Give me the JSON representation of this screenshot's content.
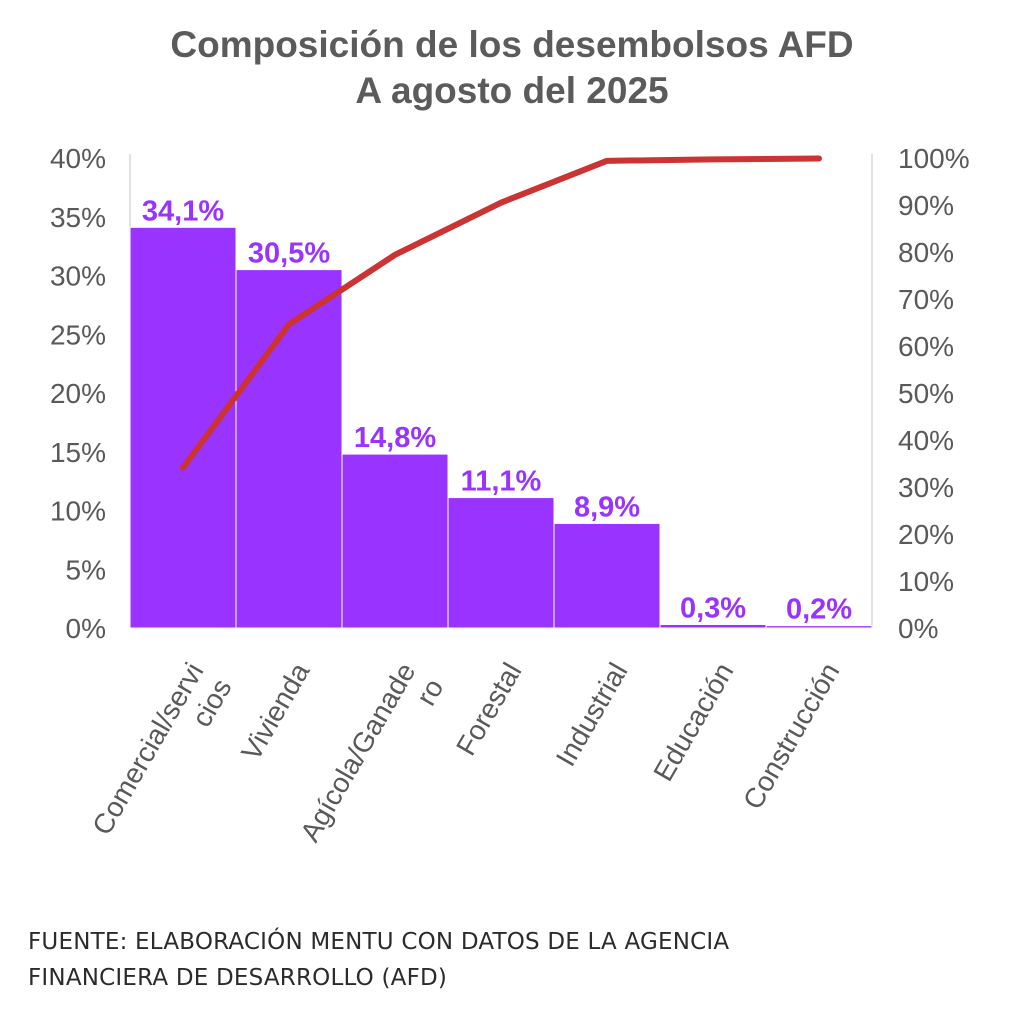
{
  "chart_data": {
    "type": "bar",
    "title": "Composición de los desembolsos AFD",
    "subtitle": "A agosto del 2025",
    "categories": [
      [
        "Comercial/servi",
        "cios"
      ],
      [
        "Vivienda"
      ],
      [
        "Agícola/Ganade",
        "ro"
      ],
      [
        "Forestal"
      ],
      [
        "Industrial"
      ],
      [
        "Educación"
      ],
      [
        "Construcción"
      ]
    ],
    "series": [
      {
        "type": "bar",
        "axis": "left",
        "values": [
          34.1,
          30.5,
          14.8,
          11.1,
          8.9,
          0.3,
          0.2
        ],
        "data_labels": [
          "34,1%",
          "30,5%",
          "14,8%",
          "11,1%",
          "8,9%",
          "0,3%",
          "0,2%"
        ],
        "color": "#9933ff"
      },
      {
        "type": "line",
        "axis": "right",
        "values": [
          34.1,
          64.6,
          79.4,
          90.5,
          99.4,
          99.7,
          99.9
        ],
        "color": "#cc3333"
      }
    ],
    "y_left": {
      "ylim": [
        0,
        40
      ],
      "ticks": [
        0,
        5,
        10,
        15,
        20,
        25,
        30,
        35,
        40
      ],
      "tick_labels": [
        "0%",
        "5%",
        "10%",
        "15%",
        "20%",
        "25%",
        "30%",
        "35%",
        "40%"
      ]
    },
    "y_right": {
      "ylim": [
        0,
        100
      ],
      "ticks": [
        0,
        10,
        20,
        30,
        40,
        50,
        60,
        70,
        80,
        90,
        100
      ],
      "tick_labels": [
        "0%",
        "10%",
        "20%",
        "30%",
        "40%",
        "50%",
        "60%",
        "70%",
        "80%",
        "90%",
        "100%"
      ]
    },
    "grid": false,
    "legend": "none"
  },
  "source": {
    "line1": "FUENTE: ELABORACIÓN MENTU CON DATOS DE LA AGENCIA",
    "line2": "FINANCIERA DE DESARROLLO (AFD)"
  },
  "colors": {
    "bar": "#9933ff",
    "bar_label": "#9933ff",
    "line": "#cc3333",
    "axis_text": "#595959",
    "axis_line": "#d9d9d9"
  }
}
